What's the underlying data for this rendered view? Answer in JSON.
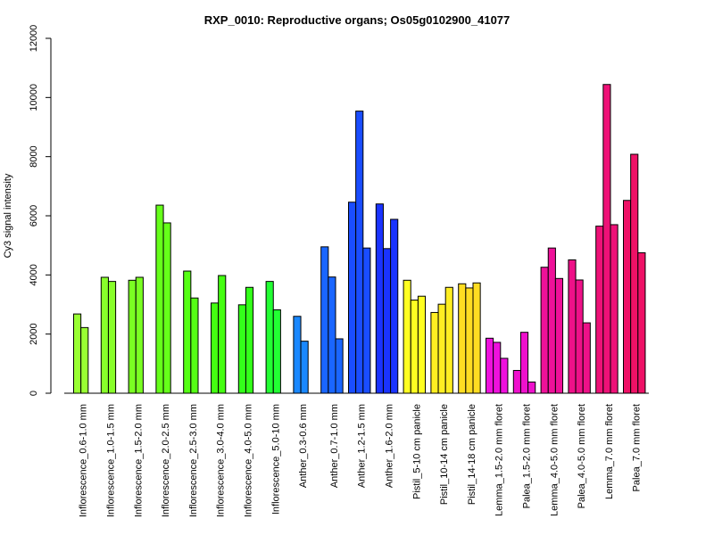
{
  "chart_data": {
    "type": "bar",
    "title": "RXP_0010: Reproductive organs; Os05g0102900_41077",
    "xlabel": "",
    "ylabel": "Cy3 signal intensity",
    "ylim": [
      0,
      12000
    ],
    "yticks": [
      0,
      2000,
      4000,
      6000,
      8000,
      10000,
      12000
    ],
    "grid": false,
    "legend": "none",
    "groups": [
      {
        "label": "Inflorescence_0.6-1.0 mm",
        "color": "#99ff33",
        "values": [
          2680,
          2220
        ]
      },
      {
        "label": "Inflorescence_1.0-1.5 mm",
        "color": "#88ff2a",
        "values": [
          3920,
          3780
        ]
      },
      {
        "label": "Inflorescence_1.5-2.0 mm",
        "color": "#7aff22",
        "values": [
          3820,
          3920
        ]
      },
      {
        "label": "Inflorescence_2.0-2.5 mm",
        "color": "#66ff1a",
        "values": [
          6360,
          5760
        ]
      },
      {
        "label": "Inflorescence_2.5-3.0 mm",
        "color": "#55ff14",
        "values": [
          4130,
          3220
        ]
      },
      {
        "label": "Inflorescence_3.0-4.0 mm",
        "color": "#44ff11",
        "values": [
          3050,
          3980
        ]
      },
      {
        "label": "Inflorescence_4.0-5.0 mm",
        "color": "#33ff1a",
        "values": [
          2990,
          3580
        ]
      },
      {
        "label": "Inflorescence_5.0-10 mm",
        "color": "#22ff33",
        "values": [
          3780,
          2820
        ]
      },
      {
        "label": "Anther_0.3-0.6 mm",
        "color": "#1a88ff",
        "values": [
          2600,
          1760
        ]
      },
      {
        "label": "Anther_0.7-1.0 mm",
        "color": "#1a66ff",
        "values": [
          4950,
          3930,
          1840
        ]
      },
      {
        "label": "Anther_1.2-1.5 mm",
        "color": "#1a4dff",
        "values": [
          6460,
          9540,
          4910
        ]
      },
      {
        "label": "Anther_1.6-2.0 mm",
        "color": "#1a33ff",
        "values": [
          6400,
          4890,
          5880
        ]
      },
      {
        "label": "Pistil_5-10 cm panicle",
        "color": "#ffff22",
        "values": [
          3820,
          3150,
          3280
        ]
      },
      {
        "label": "Pistil_10-14 cm panicle",
        "color": "#ffee22",
        "values": [
          2730,
          3010,
          3580
        ]
      },
      {
        "label": "Pistil_14-18 cm panicle",
        "color": "#ffdd22",
        "values": [
          3700,
          3560,
          3730
        ]
      },
      {
        "label": "Lemma_1.5-2.0 mm floret",
        "color": "#ee11dd",
        "values": [
          1860,
          1720,
          1180
        ]
      },
      {
        "label": "Palea_1.5-2.0 mm floret",
        "color": "#ee11cc",
        "values": [
          770,
          2060,
          380
        ]
      },
      {
        "label": "Lemma_4.0-5.0 mm floret",
        "color": "#ee1199",
        "values": [
          4260,
          4910,
          3880
        ]
      },
      {
        "label": "Palea_4.0-5.0 mm floret",
        "color": "#ee1188",
        "values": [
          4510,
          3830,
          2380
        ]
      },
      {
        "label": "Lemma_7.0 mm floret",
        "color": "#ee1177",
        "values": [
          5650,
          10440,
          5700
        ]
      },
      {
        "label": "Palea_7.0 mm floret",
        "color": "#ee1166",
        "values": [
          6520,
          8080,
          4750
        ]
      }
    ]
  }
}
